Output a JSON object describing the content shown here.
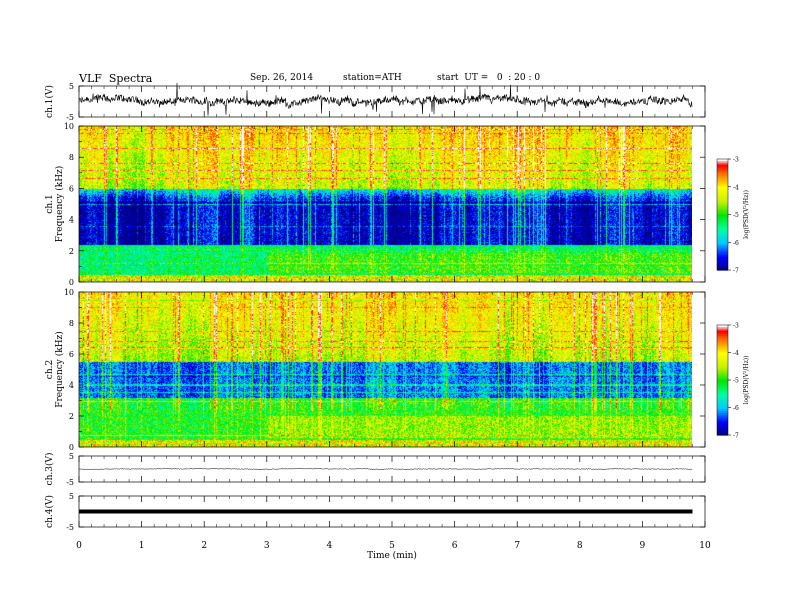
{
  "header": {
    "title": "VLF  Spectra",
    "date": "Sep. 26, 2014",
    "station": "station=ATH",
    "start_ut": "start  UT =   0  : 20 : 0"
  },
  "chart_data": {
    "type": "heatmap",
    "x_axis": {
      "label": "Time  (min)",
      "range": [
        0,
        10
      ],
      "ticks": [
        0,
        1,
        2,
        3,
        4,
        5,
        6,
        7,
        8,
        9,
        10
      ],
      "data_end": 9.8
    },
    "panels": [
      {
        "id": "ch1v",
        "type": "line",
        "ylabel": "ch.1(V)",
        "ylim": [
          -5,
          5
        ],
        "yticks": [
          5,
          -5
        ],
        "baseline": 0,
        "description_level": "noisy"
      },
      {
        "id": "ch1spec",
        "type": "heatmap",
        "ylabel_top": "ch.1",
        "ylabel": "Frequency  (kHz)",
        "ylim": [
          0,
          10
        ],
        "yticks": [
          0,
          2,
          4,
          6,
          8,
          10
        ]
      },
      {
        "id": "ch2spec",
        "type": "heatmap",
        "ylabel_top": "ch.2",
        "ylabel": "Frequency  (kHz)",
        "ylim": [
          0,
          10
        ],
        "yticks": [
          0,
          2,
          4,
          6,
          8,
          10
        ]
      },
      {
        "id": "ch3v",
        "type": "line",
        "ylabel": "ch.3(V)",
        "ylim": [
          -5,
          5
        ],
        "yticks": [
          5,
          -5
        ],
        "baseline": 0
      },
      {
        "id": "ch4v",
        "type": "line",
        "ylabel": "ch.4(V)",
        "ylim": [
          -5,
          5
        ],
        "yticks": [
          5,
          -5
        ],
        "baseline": 0
      }
    ],
    "colorbar": {
      "label": "log(PSD(V²/Hz))",
      "range": [
        -7,
        -3
      ],
      "ticks": [
        -3,
        -4,
        -5,
        -6,
        -7
      ],
      "colors": [
        "#000080",
        "#0000ff",
        "#00ffff",
        "#00ff00",
        "#ffff00",
        "#ff8000",
        "#ff0000",
        "#ffffff"
      ]
    }
  }
}
